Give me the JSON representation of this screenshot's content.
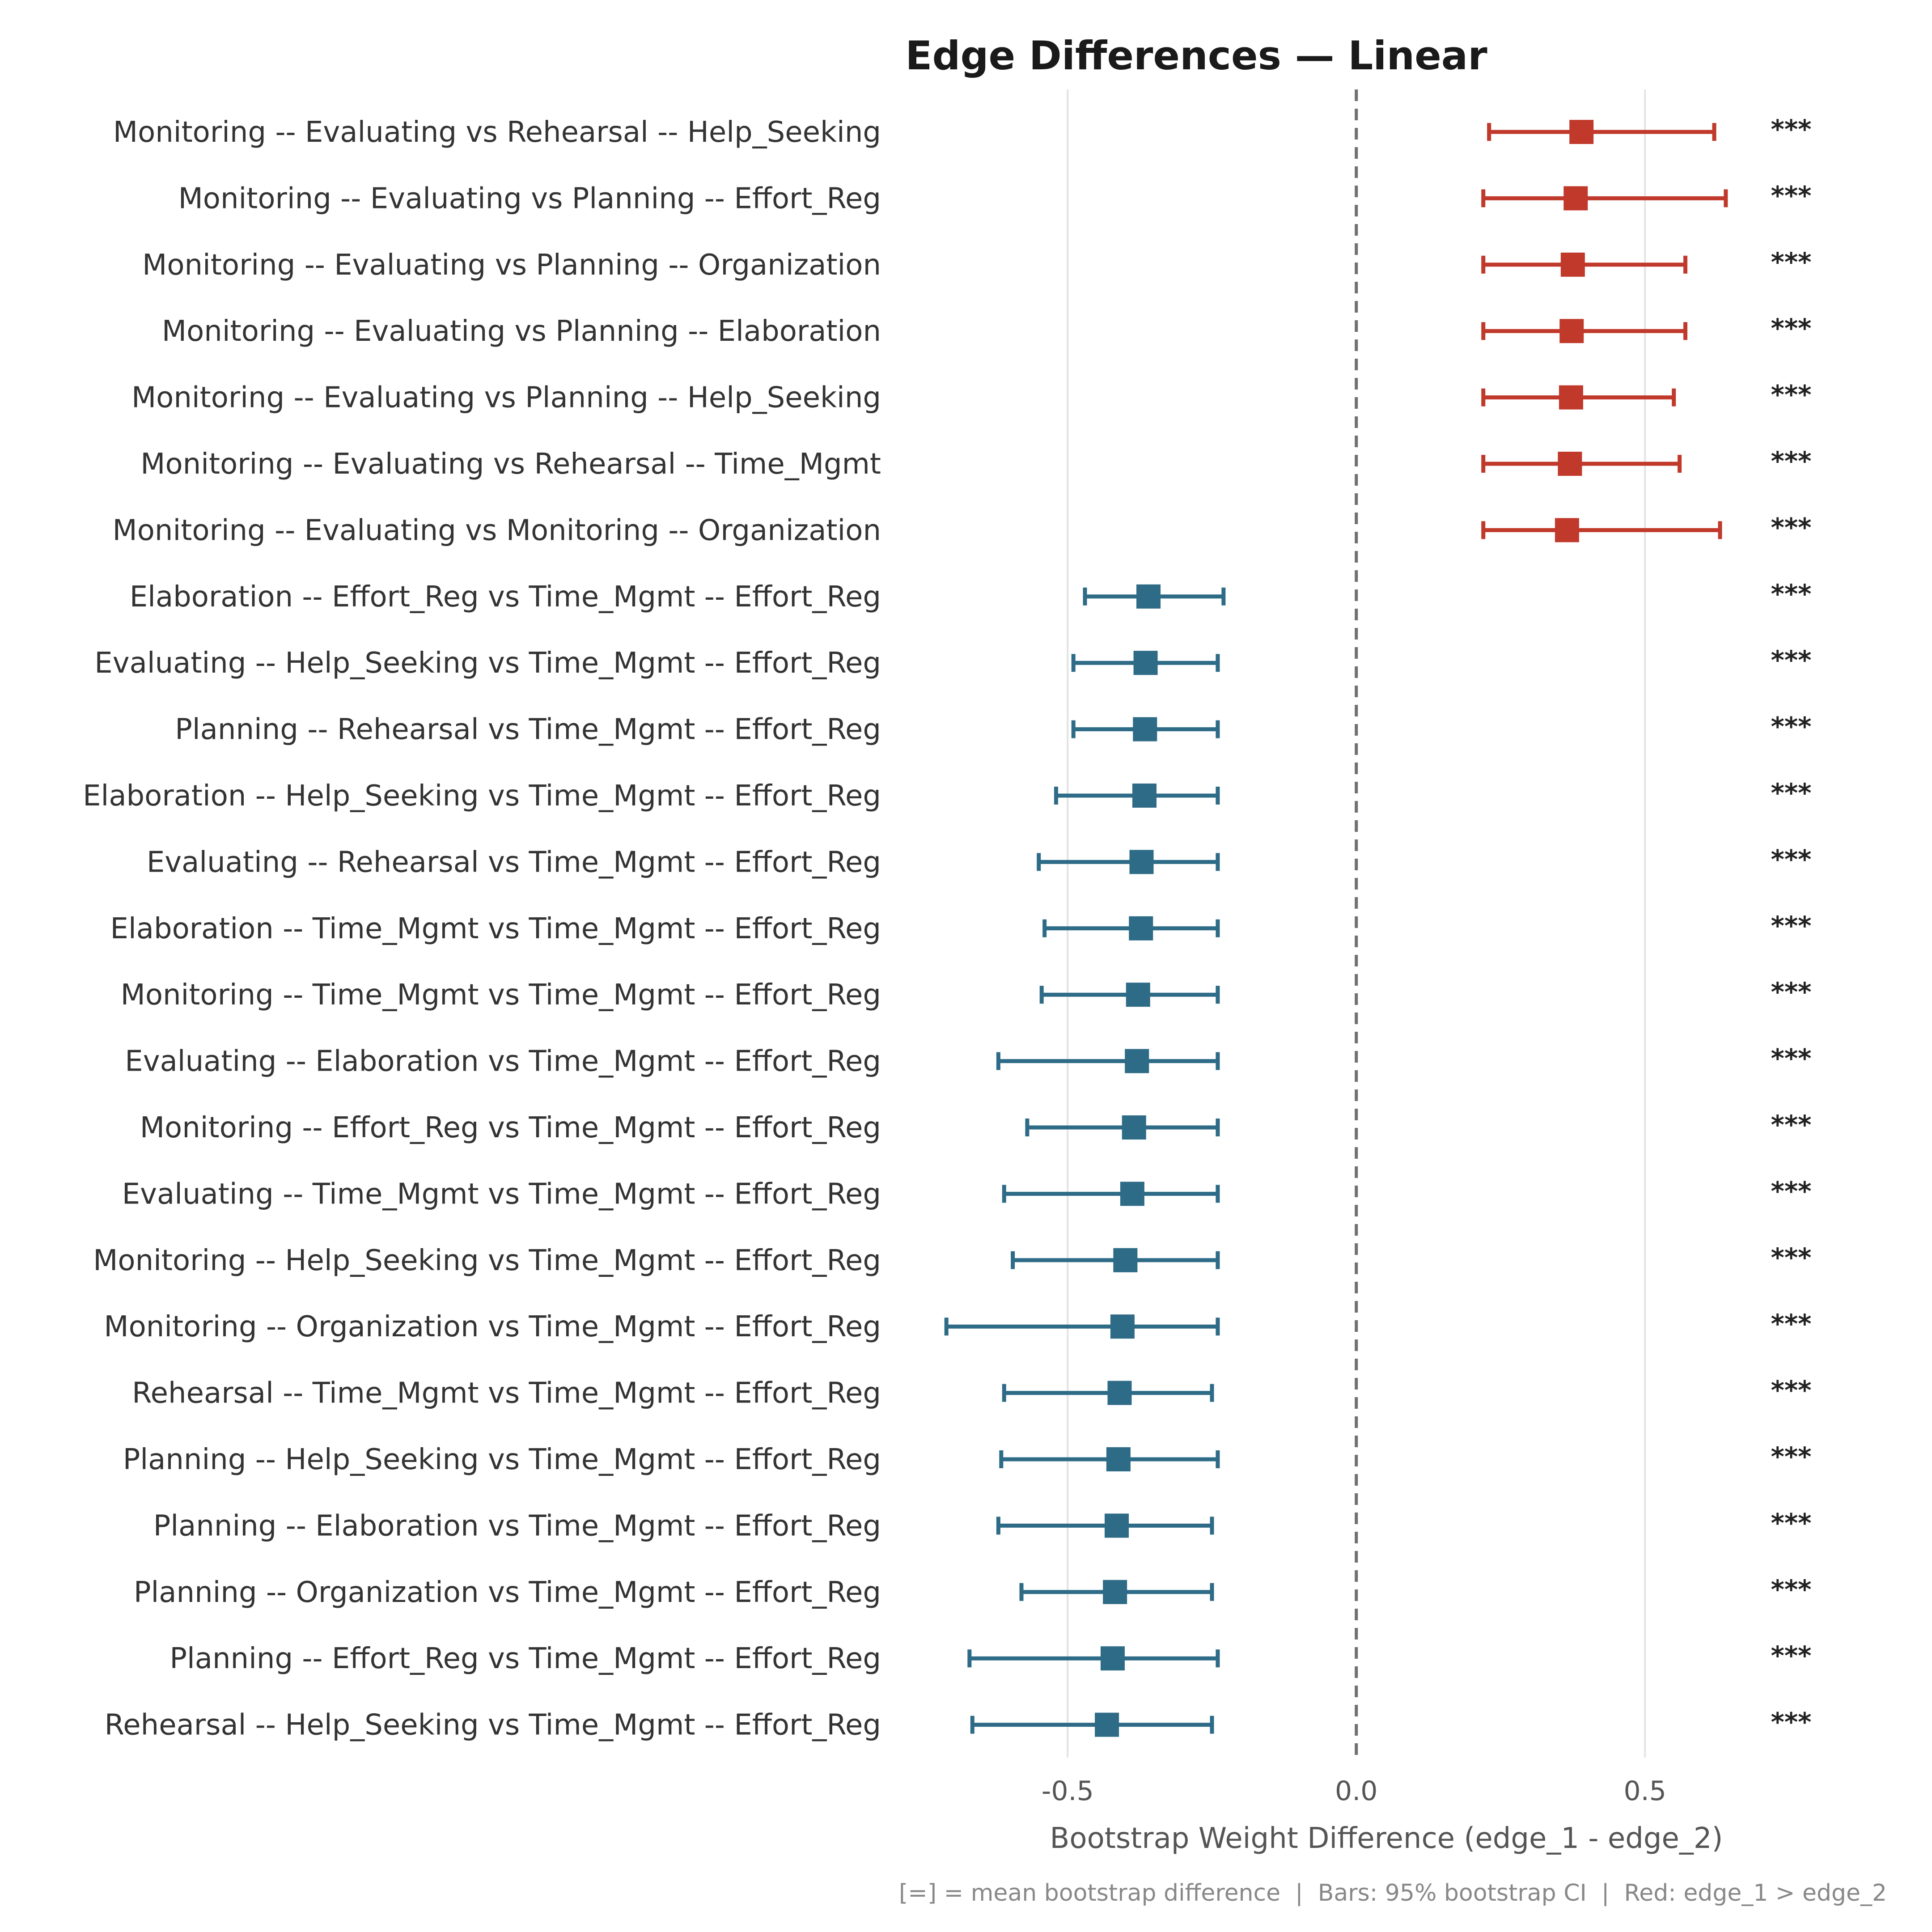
{
  "chart_data": {
    "type": "forest",
    "title": "Edge Differences — Linear",
    "xlabel": "Bootstrap Weight Difference (edge_1 - edge_2)",
    "xlim": [
      -0.8,
      0.85
    ],
    "xticks": [
      {
        "value": -0.5,
        "label": "-0.5"
      },
      {
        "value": 0.0,
        "label": "0.0"
      },
      {
        "value": 0.5,
        "label": "0.5"
      }
    ],
    "footnote": "[=] = mean bootstrap difference  |  Bars: 95% bootstrap CI  |  Red: edge_1 > edge_2",
    "colors": {
      "positive": "#c0392b",
      "negative": "#2e6b87"
    },
    "rows": [
      {
        "label": "Monitoring -- Evaluating vs Rehearsal -- Help_Seeking",
        "mean": 0.39,
        "lo": 0.23,
        "hi": 0.62,
        "sig": "***"
      },
      {
        "label": "Monitoring -- Evaluating vs Planning -- Effort_Reg",
        "mean": 0.38,
        "lo": 0.22,
        "hi": 0.64,
        "sig": "***"
      },
      {
        "label": "Monitoring -- Evaluating vs Planning -- Organization",
        "mean": 0.375,
        "lo": 0.22,
        "hi": 0.57,
        "sig": "***"
      },
      {
        "label": "Monitoring -- Evaluating vs Planning -- Elaboration",
        "mean": 0.373,
        "lo": 0.22,
        "hi": 0.57,
        "sig": "***"
      },
      {
        "label": "Monitoring -- Evaluating vs Planning -- Help_Seeking",
        "mean": 0.372,
        "lo": 0.22,
        "hi": 0.55,
        "sig": "***"
      },
      {
        "label": "Monitoring -- Evaluating vs Rehearsal -- Time_Mgmt",
        "mean": 0.37,
        "lo": 0.22,
        "hi": 0.56,
        "sig": "***"
      },
      {
        "label": "Monitoring -- Evaluating vs Monitoring -- Organization",
        "mean": 0.365,
        "lo": 0.22,
        "hi": 0.63,
        "sig": "***"
      },
      {
        "label": "Elaboration -- Effort_Reg vs Time_Mgmt -- Effort_Reg",
        "mean": -0.36,
        "lo": -0.47,
        "hi": -0.23,
        "sig": "***"
      },
      {
        "label": "Evaluating -- Help_Seeking vs Time_Mgmt -- Effort_Reg",
        "mean": -0.365,
        "lo": -0.49,
        "hi": -0.24,
        "sig": "***"
      },
      {
        "label": "Planning -- Rehearsal vs Time_Mgmt -- Effort_Reg",
        "mean": -0.366,
        "lo": -0.49,
        "hi": -0.24,
        "sig": "***"
      },
      {
        "label": "Elaboration -- Help_Seeking vs Time_Mgmt -- Effort_Reg",
        "mean": -0.367,
        "lo": -0.52,
        "hi": -0.24,
        "sig": "***"
      },
      {
        "label": "Evaluating -- Rehearsal vs Time_Mgmt -- Effort_Reg",
        "mean": -0.372,
        "lo": -0.55,
        "hi": -0.24,
        "sig": "***"
      },
      {
        "label": "Elaboration -- Time_Mgmt vs Time_Mgmt -- Effort_Reg",
        "mean": -0.373,
        "lo": -0.54,
        "hi": -0.24,
        "sig": "***"
      },
      {
        "label": "Monitoring -- Time_Mgmt vs Time_Mgmt -- Effort_Reg",
        "mean": -0.378,
        "lo": -0.545,
        "hi": -0.24,
        "sig": "***"
      },
      {
        "label": "Evaluating -- Elaboration vs Time_Mgmt -- Effort_Reg",
        "mean": -0.38,
        "lo": -0.62,
        "hi": -0.24,
        "sig": "***"
      },
      {
        "label": "Monitoring -- Effort_Reg vs Time_Mgmt -- Effort_Reg",
        "mean": -0.385,
        "lo": -0.57,
        "hi": -0.24,
        "sig": "***"
      },
      {
        "label": "Evaluating -- Time_Mgmt vs Time_Mgmt -- Effort_Reg",
        "mean": -0.388,
        "lo": -0.61,
        "hi": -0.24,
        "sig": "***"
      },
      {
        "label": "Monitoring -- Help_Seeking vs Time_Mgmt -- Effort_Reg",
        "mean": -0.4,
        "lo": -0.595,
        "hi": -0.24,
        "sig": "***"
      },
      {
        "label": "Monitoring -- Organization vs Time_Mgmt -- Effort_Reg",
        "mean": -0.405,
        "lo": -0.71,
        "hi": -0.24,
        "sig": "***"
      },
      {
        "label": "Rehearsal -- Time_Mgmt vs Time_Mgmt -- Effort_Reg",
        "mean": -0.41,
        "lo": -0.61,
        "hi": -0.25,
        "sig": "***"
      },
      {
        "label": "Planning -- Help_Seeking vs Time_Mgmt -- Effort_Reg",
        "mean": -0.412,
        "lo": -0.615,
        "hi": -0.24,
        "sig": "***"
      },
      {
        "label": "Planning -- Elaboration vs Time_Mgmt -- Effort_Reg",
        "mean": -0.415,
        "lo": -0.62,
        "hi": -0.25,
        "sig": "***"
      },
      {
        "label": "Planning -- Organization vs Time_Mgmt -- Effort_Reg",
        "mean": -0.418,
        "lo": -0.58,
        "hi": -0.25,
        "sig": "***"
      },
      {
        "label": "Planning -- Effort_Reg vs Time_Mgmt -- Effort_Reg",
        "mean": -0.422,
        "lo": -0.67,
        "hi": -0.24,
        "sig": "***"
      },
      {
        "label": "Rehearsal -- Help_Seeking vs Time_Mgmt -- Effort_Reg",
        "mean": -0.432,
        "lo": -0.665,
        "hi": -0.25,
        "sig": "***"
      }
    ]
  }
}
